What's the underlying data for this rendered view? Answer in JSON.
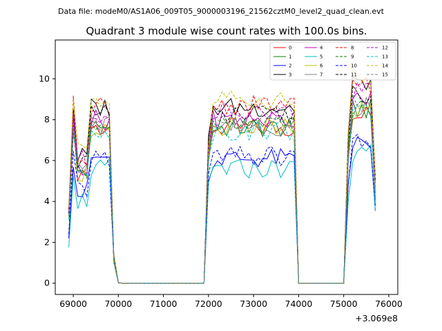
{
  "suptitle": "Data file: modeM0/AS1A06_009T05_9000003196_21562cztM0_level2_quad_clean.evt",
  "chart_data": {
    "type": "line",
    "title": "Quadrant 3 module wise count rates with 100.0s bins.",
    "xlabel": "",
    "ylabel": "",
    "x_offset_label": "+3.069e8",
    "xlim": [
      68600,
      76200
    ],
    "ylim": [
      -0.55,
      11.9
    ],
    "x_ticks": [
      69000,
      70000,
      71000,
      72000,
      73000,
      74000,
      75000,
      76000
    ],
    "x_tick_labels": [
      "69000",
      "70000",
      "71000",
      "72000",
      "73000",
      "74000",
      "75000",
      "76000"
    ],
    "y_ticks": [
      0,
      2,
      4,
      6,
      8,
      10
    ],
    "y_tick_labels": [
      "0",
      "2",
      "4",
      "6",
      "8",
      "10"
    ],
    "grid": false,
    "legend_position": "top-right",
    "segments": [
      {
        "start": 68900,
        "end": 69800
      },
      {
        "start": 72000,
        "end": 73900
      },
      {
        "start": 75100,
        "end": 75700
      }
    ],
    "series": [
      {
        "name": "0",
        "color": "#ff0000",
        "dash": "solid",
        "level": 7.6,
        "first": 3.3
      },
      {
        "name": "1",
        "color": "#008000",
        "dash": "solid",
        "level": 7.6,
        "first": 3.2
      },
      {
        "name": "2",
        "color": "#0000ff",
        "dash": "solid",
        "level": 6.1,
        "first": 2.2
      },
      {
        "name": "3",
        "color": "#000000",
        "dash": "solid",
        "level": 8.6,
        "first": 3.5
      },
      {
        "name": "4",
        "color": "#bf00bf",
        "dash": "solid",
        "level": 8.0,
        "first": 3.4
      },
      {
        "name": "5",
        "color": "#00bfbf",
        "dash": "solid",
        "level": 5.6,
        "first": 1.75
      },
      {
        "name": "6",
        "color": "#bfbf00",
        "dash": "solid",
        "level": 7.6,
        "first": 3.2
      },
      {
        "name": "7",
        "color": "#808080",
        "dash": "solid",
        "level": 7.7,
        "first": 3.3
      },
      {
        "name": "8",
        "color": "#ff0000",
        "dash": "dashed",
        "level": 8.7,
        "first": 3.6
      },
      {
        "name": "9",
        "color": "#008000",
        "dash": "dashed",
        "level": 7.7,
        "first": 3.3
      },
      {
        "name": "10",
        "color": "#0000ff",
        "dash": "dashed",
        "level": 6.2,
        "first": 2.4
      },
      {
        "name": "11",
        "color": "#000000",
        "dash": "dashed",
        "level": 8.2,
        "first": 3.4
      },
      {
        "name": "12",
        "color": "#bf00bf",
        "dash": "dashed",
        "level": 8.3,
        "first": 3.5
      },
      {
        "name": "13",
        "color": "#00bfbf",
        "dash": "dashed",
        "level": 7.5,
        "first": 3.1
      },
      {
        "name": "14",
        "color": "#bfbf00",
        "dash": "dashed",
        "level": 9.0,
        "first": 3.8
      },
      {
        "name": "15",
        "color": "#808080",
        "dash": "dashed",
        "level": 7.9,
        "first": 3.3
      }
    ]
  }
}
